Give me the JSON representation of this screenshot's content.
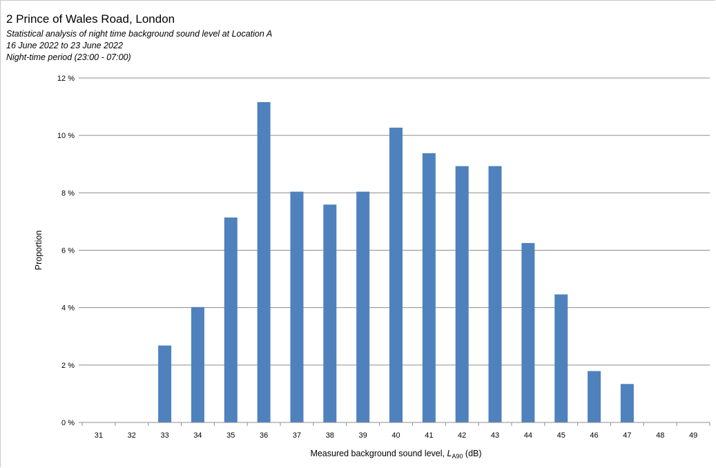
{
  "header": {
    "title": "2 Prince of Wales Road, London",
    "subtitle_lines": [
      "Statistical analysis of night time background sound level at Location A",
      "16 June 2022 to 23 June 2022",
      "Night-time period (23:00 - 07:00)"
    ]
  },
  "chart_data": {
    "type": "bar",
    "title": "2 Prince of Wales Road, London",
    "xlabel_main": "Measured background sound level, ",
    "xlabel_symbol": "L",
    "xlabel_subscript": "A90",
    "xlabel_unit": " (dB)",
    "ylabel": "Proportion",
    "categories": [
      "31",
      "32",
      "33",
      "34",
      "35",
      "36",
      "37",
      "38",
      "39",
      "40",
      "41",
      "42",
      "43",
      "44",
      "45",
      "46",
      "47",
      "48",
      "49"
    ],
    "values": [
      0,
      0,
      2.68,
      4.02,
      7.14,
      11.16,
      8.04,
      7.59,
      8.04,
      10.27,
      9.38,
      8.93,
      8.93,
      6.25,
      4.46,
      1.79,
      1.34,
      0,
      0
    ],
    "ylim": [
      0,
      12
    ],
    "yticks": [
      0,
      2,
      4,
      6,
      8,
      10,
      12
    ],
    "ytick_labels": [
      "0 %",
      "2 %",
      "4 %",
      "6 %",
      "8 %",
      "10 %",
      "12 %"
    ],
    "grid": true,
    "legend": "none",
    "bar_color": "#4f81bd",
    "grid_color": "#8c8c8c"
  }
}
